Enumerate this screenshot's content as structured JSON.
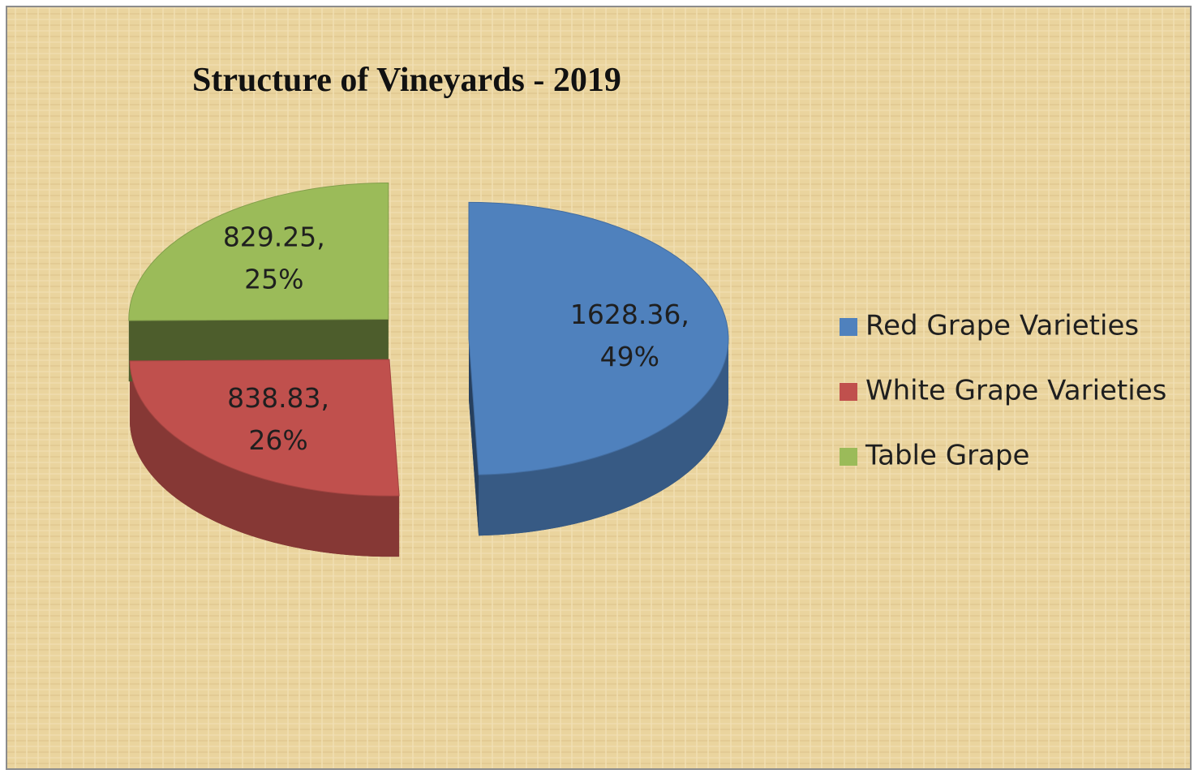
{
  "chart_data": {
    "type": "pie",
    "title": "Structure of Vineyards - 2019",
    "categories": [
      "Red Grape Varieties",
      "White Grape Varieties",
      "Table Grape"
    ],
    "values": [
      1628.36,
      838.83,
      829.25
    ],
    "value_labels": [
      "1628.36,",
      "838.83,",
      "829.25,"
    ],
    "percentages": [
      49,
      26,
      25
    ],
    "percent_labels": [
      "49%",
      "26%",
      "25%"
    ],
    "colors": [
      "#4f81bd",
      "#c0504d",
      "#9bbb59"
    ],
    "legend": "right",
    "exploded": true,
    "three_d": true
  }
}
